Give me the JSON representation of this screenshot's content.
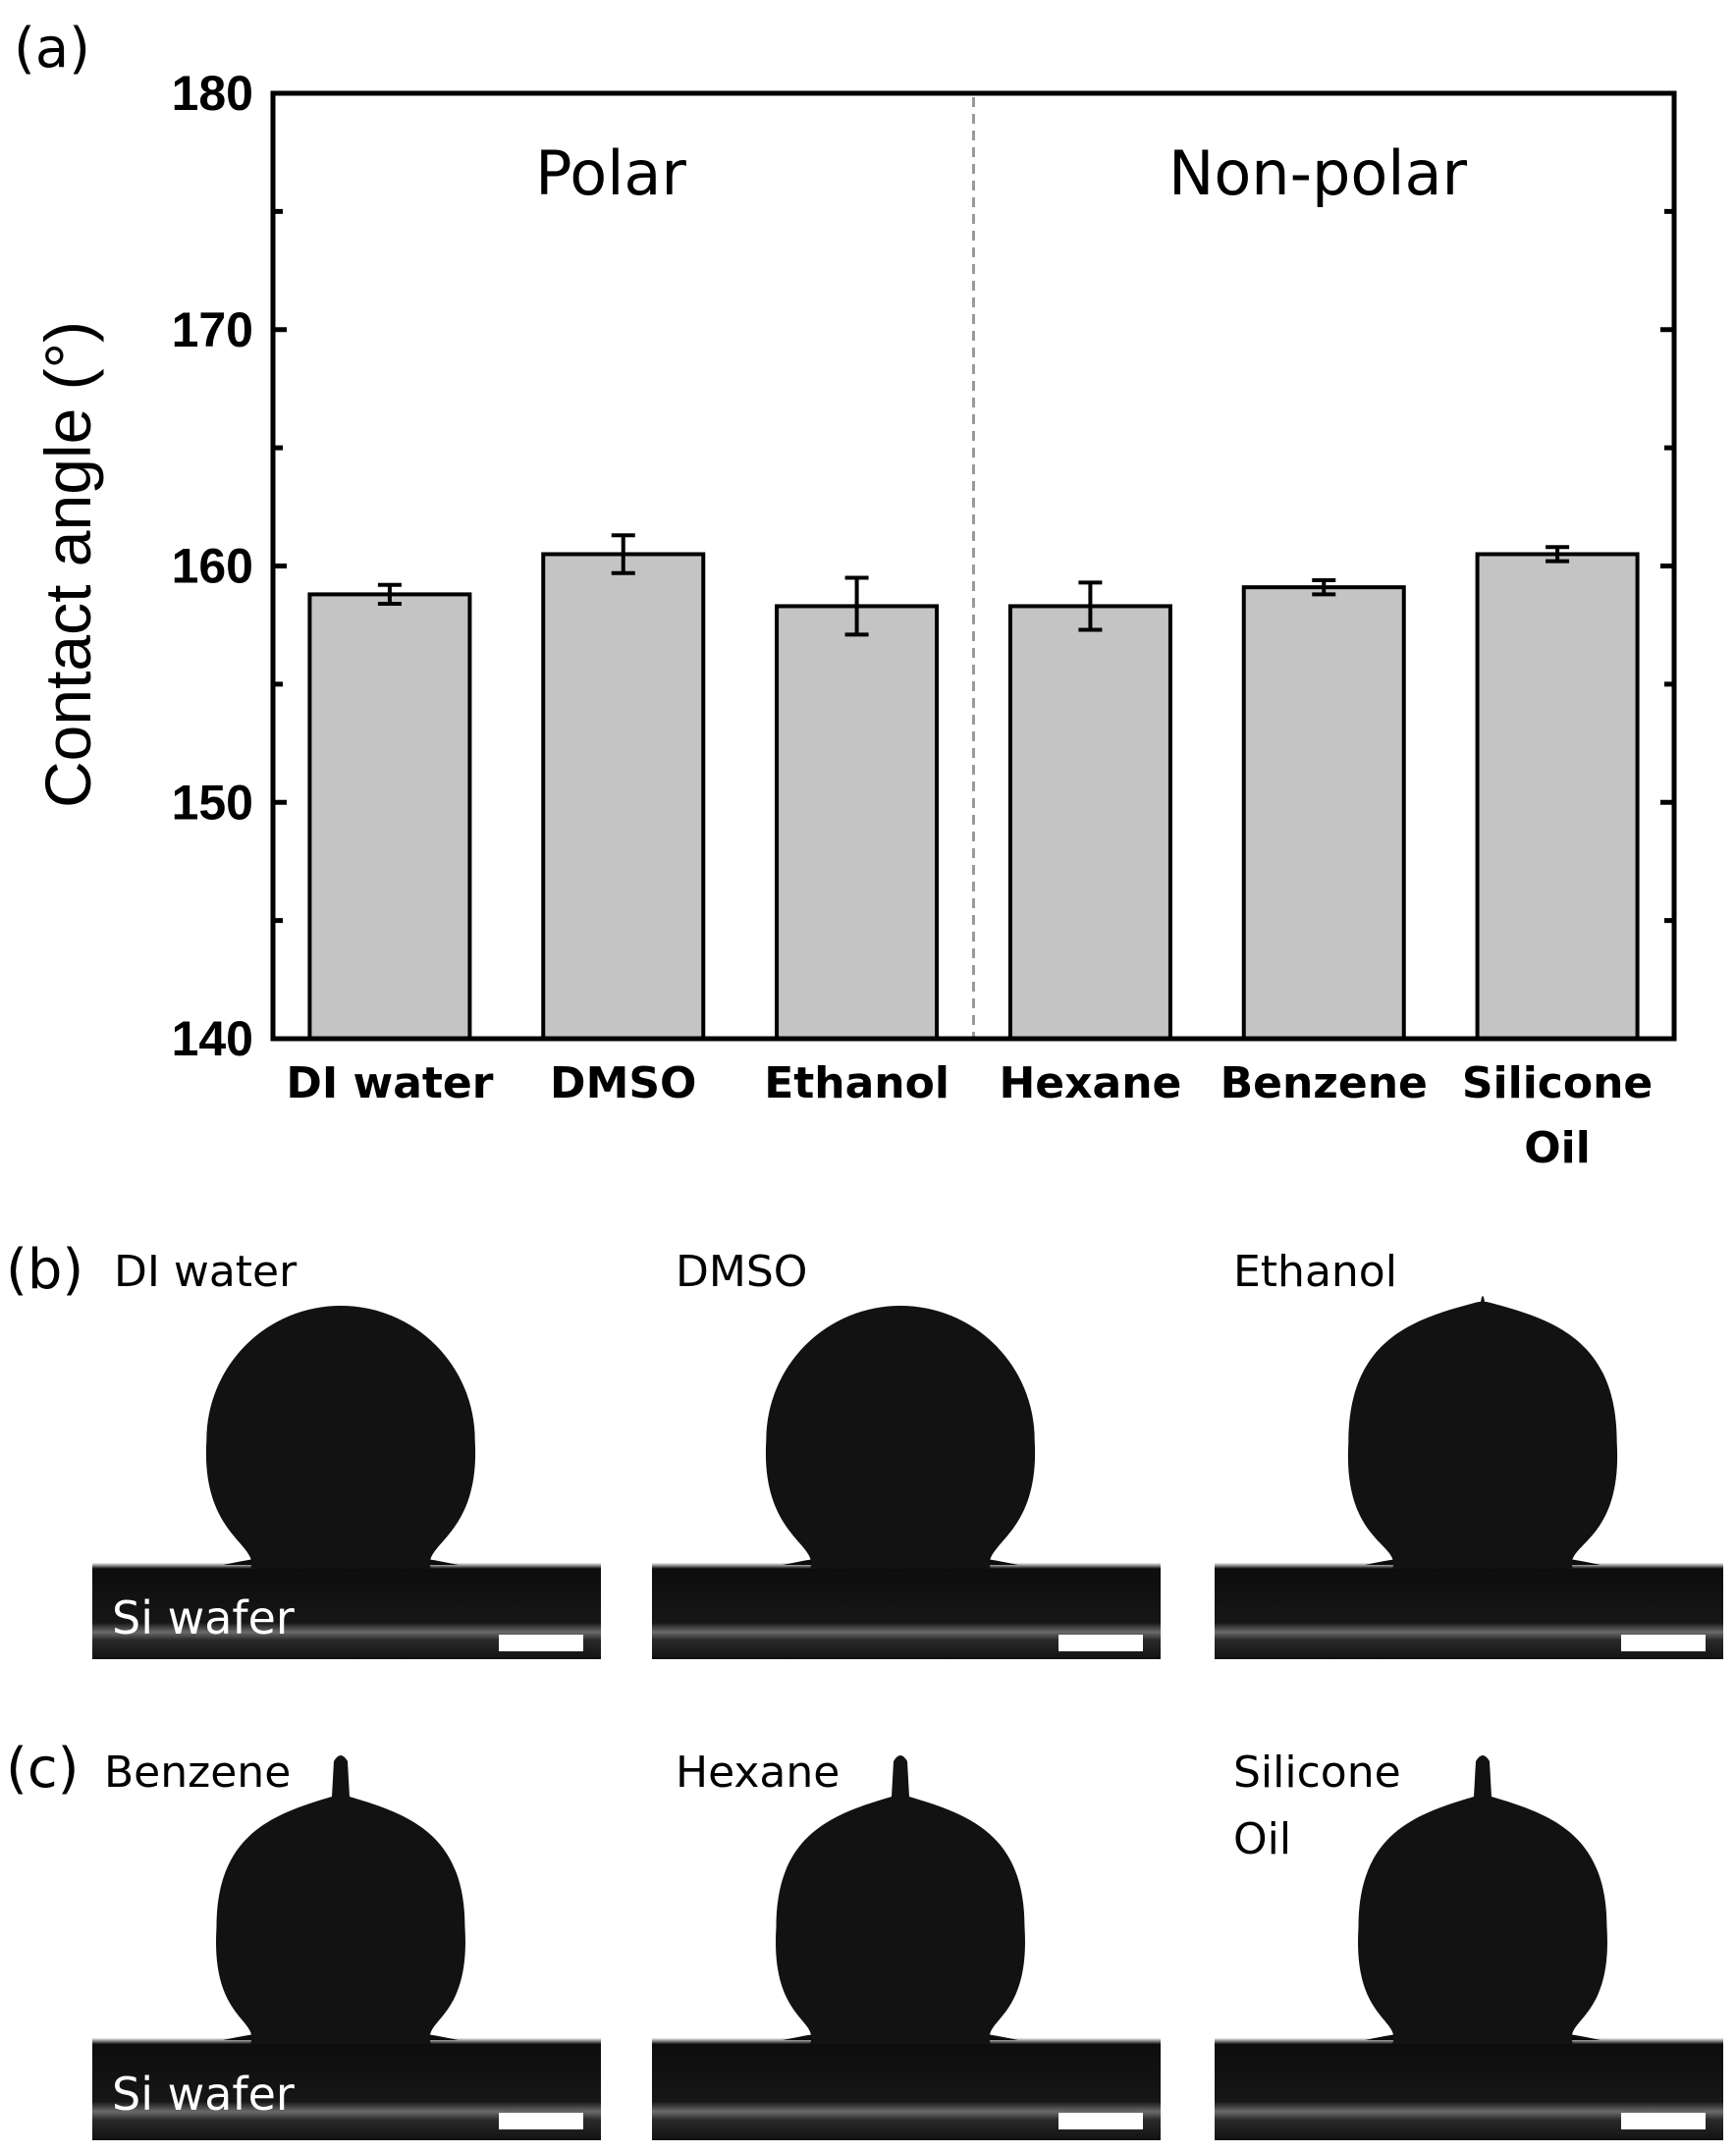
{
  "figure": {
    "panel_a": "(a)",
    "panel_b": "(b)",
    "panel_c": "(c)"
  },
  "chart_data": {
    "type": "bar",
    "title": "",
    "xlabel": "",
    "ylabel": "Contact angle (°)",
    "ylim": [
      140,
      180
    ],
    "yticks": [
      "140",
      "150",
      "160",
      "170",
      "180"
    ],
    "categories": [
      [
        "DI water"
      ],
      [
        "DMSO"
      ],
      [
        "Ethanol"
      ],
      [
        "Hexane"
      ],
      [
        "Benzene"
      ],
      [
        "Silicone",
        "Oil"
      ]
    ],
    "values": [
      158.8,
      160.5,
      158.3,
      158.3,
      159.1,
      160.5
    ],
    "errors": [
      0.4,
      0.8,
      1.2,
      1.0,
      0.3,
      0.3
    ],
    "bar_color": "#c4c4c4",
    "grid": false,
    "groups": [
      {
        "label": "Polar",
        "start_index": 0,
        "end_index": 2
      },
      {
        "label": "Non-polar",
        "start_index": 3,
        "end_index": 5
      }
    ],
    "divider_after_index": 2
  },
  "photos": {
    "row_b": [
      {
        "label": [
          "DI water"
        ],
        "substrate": "Si wafer",
        "drop": "sphere"
      },
      {
        "label": [
          "DMSO"
        ],
        "substrate": "",
        "drop": "sphere"
      },
      {
        "label": [
          "Ethanol"
        ],
        "substrate": "",
        "drop": "pointed"
      }
    ],
    "row_c": [
      {
        "label": [
          "Benzene"
        ],
        "substrate": "Si wafer",
        "drop": "needle"
      },
      {
        "label": [
          "Hexane"
        ],
        "substrate": "",
        "drop": "needle"
      },
      {
        "label": [
          "Silicone",
          "Oil"
        ],
        "substrate": "",
        "drop": "needle"
      }
    ]
  }
}
